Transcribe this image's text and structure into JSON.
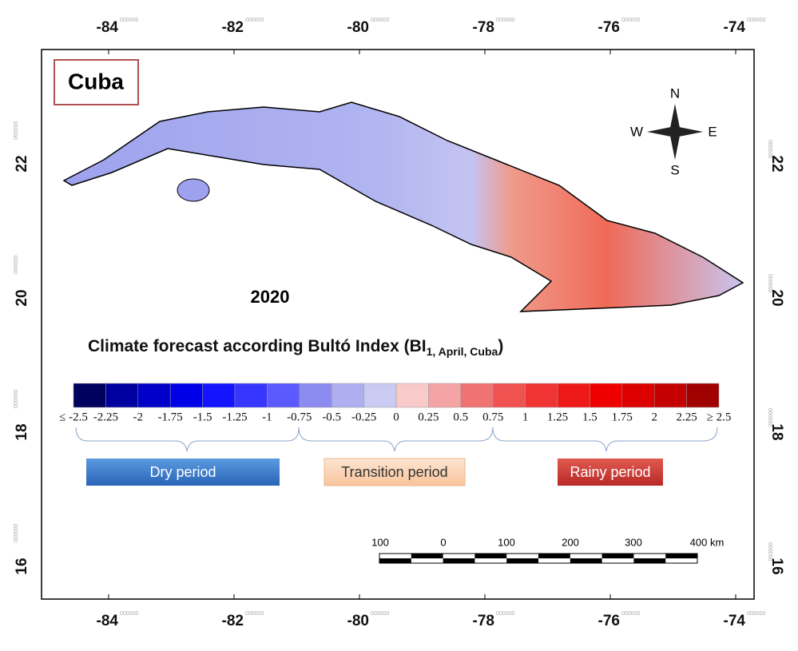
{
  "title": "Cuba",
  "year": "2020",
  "caption": {
    "main": "Climate forecast according Bultó Index  (BI",
    "sub": "1, April, Cuba",
    "end": ")"
  },
  "longitude_labels": [
    {
      "label": "-84",
      "suffix": "000000"
    },
    {
      "label": "-82",
      "suffix": "000000"
    },
    {
      "label": "-80",
      "suffix": "000000"
    },
    {
      "label": "-78",
      "suffix": "000000"
    },
    {
      "label": "-76",
      "suffix": "000000"
    },
    {
      "label": "-74",
      "suffix": "000000"
    }
  ],
  "latitude_labels": [
    {
      "label": "22",
      "suffix": "000000"
    },
    {
      "label": "20",
      "suffix": "000000"
    },
    {
      "label": "18",
      "suffix": "000000"
    },
    {
      "label": "16",
      "suffix": "000000"
    }
  ],
  "compass": {
    "n": "N",
    "s": "S",
    "e": "E",
    "w": "W"
  },
  "colorbar": {
    "colors": [
      "#00005e",
      "#0000a0",
      "#0000c8",
      "#0000e8",
      "#1414ff",
      "#3636ff",
      "#5a5aff",
      "#8c8cf0",
      "#aeaef0",
      "#cacaf2",
      "#f8caca",
      "#f4a4a4",
      "#f07272",
      "#f05252",
      "#f03434",
      "#ee1a1a",
      "#ee0000",
      "#dc0000",
      "#c40000",
      "#a00000"
    ],
    "labels": [
      "≤ -2.5",
      "-2.25",
      "-2",
      "-1.75",
      "-1.5",
      "-1.25",
      "-1",
      "-0.75",
      "-0.5",
      "-0.25",
      "0",
      "0.25",
      "0.5",
      "0.75",
      "1",
      "1.25",
      "1.5",
      "1.75",
      "2",
      "2.25",
      "≥ 2.5"
    ]
  },
  "periods": [
    "Dry period",
    "Transition period",
    "Rainy period"
  ],
  "scale_bar": {
    "labels": [
      "100",
      "0",
      "100",
      "200",
      "300",
      "400 km"
    ]
  }
}
